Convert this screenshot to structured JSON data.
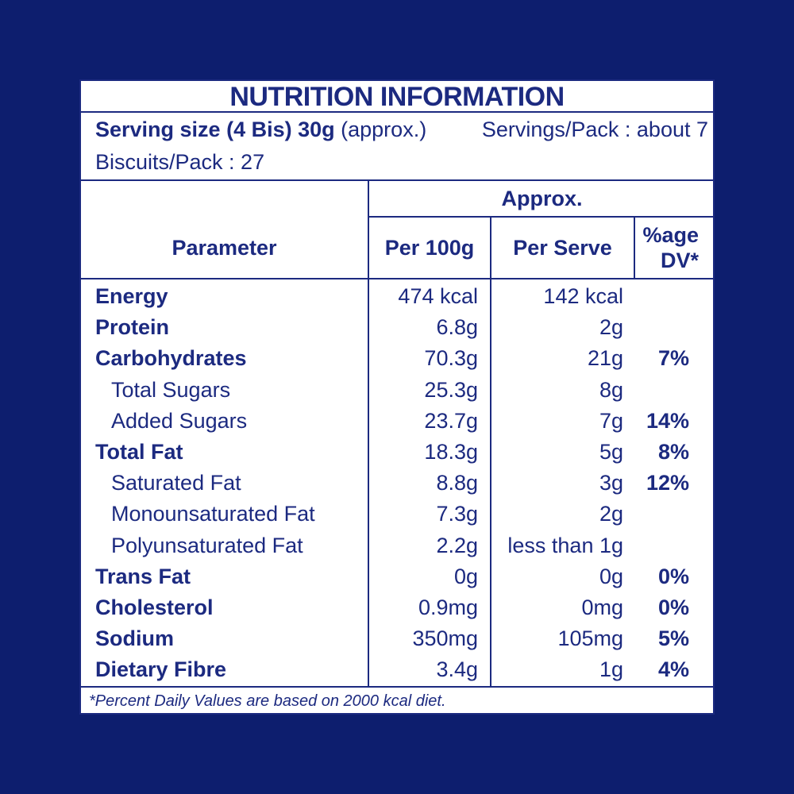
{
  "title": "NUTRITION INFORMATION",
  "serving": {
    "size_bold": "Serving size (4 Bis) 30g",
    "size_note": "(approx.)",
    "servings_per_pack": "Servings/Pack : about 7",
    "biscuits_per_pack": "Biscuits/Pack : 27"
  },
  "headers": {
    "approx": "Approx.",
    "parameter": "Parameter",
    "per100g": "Per 100g",
    "per_serve": "Per Serve",
    "dv_line1": "%age",
    "dv_line2": "DV*"
  },
  "rows": [
    {
      "name": "Energy",
      "level": "main",
      "per100g": "474 kcal",
      "per_serve": "142 kcal",
      "dv": ""
    },
    {
      "name": "Protein",
      "level": "main",
      "per100g": "6.8g",
      "per_serve": "2g",
      "dv": ""
    },
    {
      "name": "Carbohydrates",
      "level": "main",
      "per100g": "70.3g",
      "per_serve": "21g",
      "dv": "7%"
    },
    {
      "name": "Total Sugars",
      "level": "sub",
      "per100g": "25.3g",
      "per_serve": "8g",
      "dv": ""
    },
    {
      "name": "Added Sugars",
      "level": "sub",
      "per100g": "23.7g",
      "per_serve": "7g",
      "dv": "14%"
    },
    {
      "name": "Total Fat",
      "level": "main",
      "per100g": "18.3g",
      "per_serve": "5g",
      "dv": "8%"
    },
    {
      "name": "Saturated Fat",
      "level": "sub",
      "per100g": "8.8g",
      "per_serve": "3g",
      "dv": "12%"
    },
    {
      "name": "Monounsaturated Fat",
      "level": "sub",
      "per100g": "7.3g",
      "per_serve": "2g",
      "dv": ""
    },
    {
      "name": "Polyunsaturated Fat",
      "level": "sub",
      "per100g": "2.2g",
      "per_serve": "less than 1g",
      "dv": ""
    },
    {
      "name": "Trans Fat",
      "level": "main",
      "per100g": "0g",
      "per_serve": "0g",
      "dv": "0%"
    },
    {
      "name": "Cholesterol",
      "level": "main",
      "per100g": "0.9mg",
      "per_serve": "0mg",
      "dv": "0%"
    },
    {
      "name": "Sodium",
      "level": "main",
      "per100g": "350mg",
      "per_serve": "105mg",
      "dv": "5%"
    },
    {
      "name": "Dietary Fibre",
      "level": "main",
      "per100g": "3.4g",
      "per_serve": "1g",
      "dv": "4%"
    }
  ],
  "footnote": "*Percent Daily Values are based on 2000 kcal diet.",
  "colors": {
    "background": "#0d1e6e",
    "text": "#1c2a80",
    "panel": "#ffffff"
  }
}
